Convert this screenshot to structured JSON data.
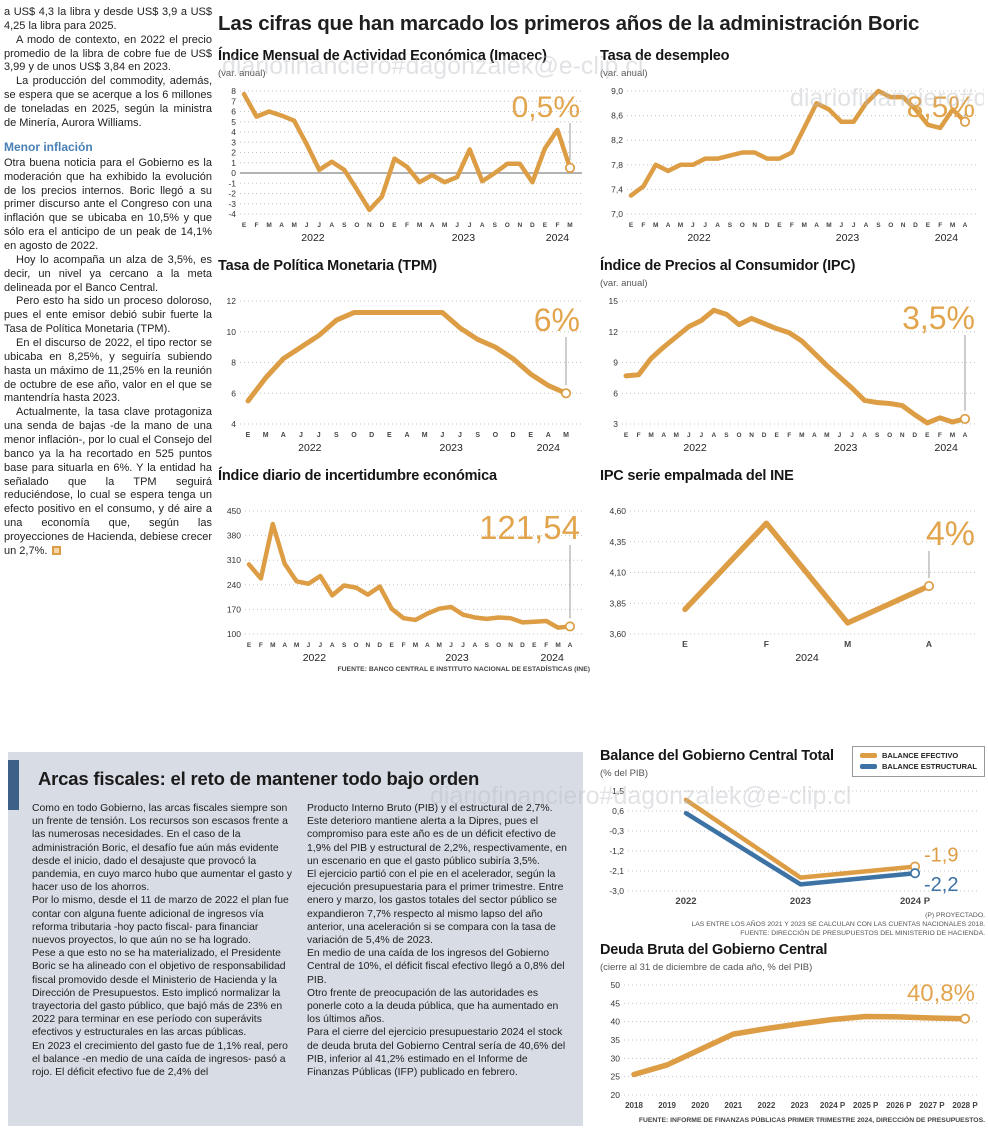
{
  "page": {
    "main_title": "Las cifras que han marcado los primeros años de la administración Boric",
    "watermark": "diariofinanciero#dagonzalek@e-clip.cl"
  },
  "left_article": {
    "paragraphs": [
      "a US$ 4,3 la libra y desde US$ 3,9 a US$ 4,25 la libra para 2025.",
      "A modo de contexto, en 2022 el precio promedio de la libra de cobre fue de US$ 3,99 y de unos US$ 3,84 en 2023.",
      "La producción del commodity, además, se espera que se acerque a los 6 millones de toneladas en 2025, según la ministra de Minería, Aurora Williams."
    ],
    "subhead": "Menor inflación",
    "paragraphs2": [
      "Otra buena noticia para el Gobierno es la moderación que ha exhibido la evolución de los precios internos. Boric llegó a su primer discurso ante el Congreso con una inflación que se ubicaba en 10,5% y que sólo era el anticipo de un peak de 14,1% en agosto de 2022.",
      "Hoy lo acompaña un alza de 3,5%, es decir, un nivel ya cercano a la meta delineada por el Banco Central.",
      "Pero esto ha sido un proceso doloroso, pues el ente emisor debió subir fuerte la Tasa de Política Monetaria (TPM).",
      "En el discurso de 2022, el tipo rector se ubicaba en 8,25%, y seguiría subiendo hasta un máximo de 11,25% en la reunión de octubre de ese año, valor en el que se mantendría hasta 2023.",
      "Actualmente, la tasa clave protagoniza una senda de bajas -de la mano de una menor inflación-, por lo cual el Consejo del banco ya la ha recortado en 525 puntos base para situarla en 6%. Y la entidad ha señalado que la TPM seguirá reduciéndose, lo cual se espera tenga un efecto positivo en el consumo, y dé aire a una economía que, según las proyecciones de Hacienda, debiese crecer un 2,7%."
    ]
  },
  "fiscal_box": {
    "title": "Arcas fiscales: el reto de mantener todo bajo orden",
    "col1": [
      "Como en todo Gobierno, las arcas fiscales siempre son un frente de tensión. Los recursos son escasos frente a las numerosas necesidades. En el caso de la administración Boric, el desafío fue aún más evidente desde el inicio, dado el desajuste que provocó la pandemia, en cuyo marco hubo que aumentar el gasto y hacer uso de los ahorros.",
      "Por lo mismo, desde el 11 de marzo de 2022 el plan fue contar con alguna fuente adicional de ingresos vía reforma tributaria -hoy pacto fiscal- para financiar nuevos proyectos, lo que aún no se ha logrado.",
      "Pese a que esto no se ha materializado, el Presidente Boric se ha alineado con el objetivo de responsabilidad fiscal promovido desde el Ministerio de Hacienda y la Dirección de Presupuestos. Esto implicó normalizar la trayectoria del gasto público, que bajó más de 23% en 2022 para terminar en ese período con superávits efectivos y estructurales en las arcas públicas.",
      "En 2023 el crecimiento del gasto fue de 1,1% real, pero el balance -en medio de una caída de ingresos- pasó a rojo. El déficit efectivo fue de 2,4% del"
    ],
    "col2": [
      "Producto Interno Bruto (PIB) y el estructural de 2,7%. Este deterioro mantiene alerta a la Dipres, pues el compromiso para este año es de un déficit efectivo de 1,9% del PIB y estructural de 2,2%, respectivamente, en un escenario en que el gasto público subiría 3,5%.",
      "El ejercicio partió con el pie en el acelerador, según la ejecución presupuestaria para el primer trimestre. Entre enero y marzo, los gastos totales del sector público se expandieron 7,7% respecto al mismo lapso del año anterior, una aceleración si se compara con la tasa de variación de 5,4% de 2023.",
      "En medio de una caída de los ingresos del Gobierno Central de 10%, el déficit fiscal efectivo llegó a 0,8% del PIB.",
      "Otro frente de preocupación de las autoridades es ponerle coto a la deuda pública, que ha aumentado en los últimos años.",
      "Para el cierre del ejercicio presupuestario 2024 el stock de deuda bruta del Gobierno Central sería de 40,6% del PIB, inferior al 41,2% estimado en el Informe de Finanzas Públicas (IFP) publicado en febrero."
    ]
  },
  "colors": {
    "line_orange": "#dd9d45",
    "big_label_orange": "#e2a54e",
    "line_blue": "#3d72a4",
    "subhead_blue": "#4a80b5",
    "box_bg": "#d8dde5",
    "accent_bar": "#3c6087"
  },
  "chart_data": {
    "imacec": {
      "type": "line",
      "title": "Índice Mensual de Actividad Económica (Imacec)",
      "subtitle": "(var. anual)",
      "big_value": "0,5%",
      "color": "#dd9d45",
      "ylim": [
        -4,
        8
      ],
      "zero_line": true,
      "ticks": [
        {
          "v": 8,
          "label": "8"
        },
        {
          "v": 7,
          "label": "7"
        },
        {
          "v": 6,
          "label": "6"
        },
        {
          "v": 5,
          "label": "5"
        },
        {
          "v": 4,
          "label": "4"
        },
        {
          "v": 3,
          "label": "3"
        },
        {
          "v": 2,
          "label": "2"
        },
        {
          "v": 1,
          "label": "1"
        },
        {
          "v": 0,
          "label": "0"
        },
        {
          "v": -1,
          "label": "-1"
        },
        {
          "v": -2,
          "label": "-2"
        },
        {
          "v": -3,
          "label": "-3"
        },
        {
          "v": -4,
          "label": "-4"
        }
      ],
      "x_labels": [
        "E",
        "F",
        "M",
        "A",
        "M",
        "J",
        "J",
        "A",
        "S",
        "O",
        "N",
        "D",
        "E",
        "F",
        "M",
        "A",
        "M",
        "J",
        "J",
        "A",
        "S",
        "O",
        "N",
        "D",
        "E",
        "F",
        "M"
      ],
      "years": [
        {
          "label": "2022",
          "from": 0,
          "to": 11
        },
        {
          "label": "2023",
          "from": 12,
          "to": 23
        },
        {
          "label": "2024",
          "from": 24,
          "to": 26
        }
      ],
      "values": [
        7.7,
        5.5,
        6.0,
        5.6,
        5.1,
        2.8,
        0.3,
        1.1,
        0.3,
        -1.6,
        -3.6,
        -2.3,
        1.4,
        0.6,
        -0.9,
        -0.2,
        -0.9,
        -0.4,
        2.3,
        -0.8,
        0.0,
        0.9,
        0.9,
        -0.9,
        2.4,
        4.2,
        0.5
      ]
    },
    "desempleo": {
      "type": "line",
      "title": "Tasa de desempleo",
      "subtitle": "(var. anual)",
      "big_value": "8,5%",
      "color": "#dd9d45",
      "ylim": [
        7.0,
        9.0
      ],
      "ticks": [
        {
          "v": 9.0,
          "label": "9,0"
        },
        {
          "v": 8.6,
          "label": "8,6"
        },
        {
          "v": 8.2,
          "label": "8,2"
        },
        {
          "v": 7.8,
          "label": "7,8"
        },
        {
          "v": 7.4,
          "label": "7,4"
        },
        {
          "v": 7.0,
          "label": "7,0"
        }
      ],
      "x_labels": [
        "E",
        "F",
        "M",
        "A",
        "M",
        "J",
        "J",
        "A",
        "S",
        "O",
        "N",
        "D",
        "E",
        "F",
        "M",
        "A",
        "M",
        "J",
        "J",
        "A",
        "S",
        "O",
        "N",
        "D",
        "E",
        "F",
        "M",
        "A"
      ],
      "years": [
        {
          "label": "2022",
          "from": 0,
          "to": 11
        },
        {
          "label": "2023",
          "from": 12,
          "to": 23
        },
        {
          "label": "2024",
          "from": 24,
          "to": 27
        }
      ],
      "values": [
        7.3,
        7.45,
        7.8,
        7.7,
        7.8,
        7.8,
        7.9,
        7.9,
        7.95,
        8.0,
        8.0,
        7.9,
        7.9,
        8.0,
        8.4,
        8.8,
        8.7,
        8.5,
        8.5,
        8.8,
        9.0,
        8.9,
        8.9,
        8.7,
        8.45,
        8.4,
        8.7,
        8.5
      ]
    },
    "tpm": {
      "type": "line",
      "title": "Tasa de Política Monetaria (TPM)",
      "big_value": "6%",
      "color": "#dd9d45",
      "ylim": [
        4,
        12
      ],
      "ticks": [
        {
          "v": 12,
          "label": "12"
        },
        {
          "v": 10,
          "label": "10"
        },
        {
          "v": 8,
          "label": "8"
        },
        {
          "v": 6,
          "label": "6"
        },
        {
          "v": 4,
          "label": "4"
        }
      ],
      "x_labels": [
        "E",
        "M",
        "A",
        "J",
        "J",
        "S",
        "O",
        "D",
        "E",
        "A",
        "M",
        "J",
        "J",
        "S",
        "O",
        "D",
        "E",
        "A",
        "M"
      ],
      "years": [
        {
          "label": "2022",
          "from": 0,
          "to": 7
        },
        {
          "label": "2023",
          "from": 8,
          "to": 15
        },
        {
          "label": "2024",
          "from": 16,
          "to": 18
        }
      ],
      "values": [
        5.5,
        7.0,
        8.25,
        9.0,
        9.75,
        10.75,
        11.25,
        11.25,
        11.25,
        11.25,
        11.25,
        11.25,
        10.25,
        9.5,
        9.0,
        8.25,
        7.25,
        6.5,
        6.0
      ]
    },
    "ipc": {
      "type": "line",
      "title": "Índice de Precios al Consumidor (IPC)",
      "subtitle": "(var. anual)",
      "big_value": "3,5%",
      "color": "#dd9d45",
      "ylim": [
        3,
        15
      ],
      "ticks": [
        {
          "v": 15,
          "label": "15"
        },
        {
          "v": 12,
          "label": "12"
        },
        {
          "v": 9,
          "label": "9"
        },
        {
          "v": 6,
          "label": "6"
        },
        {
          "v": 3,
          "label": "3"
        }
      ],
      "x_labels": [
        "E",
        "F",
        "M",
        "A",
        "M",
        "J",
        "J",
        "A",
        "S",
        "O",
        "N",
        "D",
        "E",
        "F",
        "M",
        "A",
        "M",
        "J",
        "J",
        "A",
        "S",
        "O",
        "N",
        "D",
        "E",
        "F",
        "M",
        "A"
      ],
      "years": [
        {
          "label": "2022",
          "from": 0,
          "to": 11
        },
        {
          "label": "2023",
          "from": 12,
          "to": 23
        },
        {
          "label": "2024",
          "from": 24,
          "to": 27
        }
      ],
      "values": [
        7.7,
        7.8,
        9.4,
        10.5,
        11.5,
        12.5,
        13.1,
        14.1,
        13.7,
        12.7,
        13.3,
        12.8,
        12.3,
        11.9,
        11.1,
        9.9,
        8.7,
        7.6,
        6.5,
        5.3,
        5.1,
        5.0,
        4.8,
        3.9,
        3.1,
        3.6,
        3.2,
        3.5
      ]
    },
    "incertidumbre": {
      "type": "line",
      "title": "Índice diario de incertidumbre económica",
      "big_value": "121,54",
      "color": "#dd9d45",
      "ylim": [
        100,
        450
      ],
      "ticks": [
        {
          "v": 450,
          "label": "450"
        },
        {
          "v": 380,
          "label": "380"
        },
        {
          "v": 310,
          "label": "310"
        },
        {
          "v": 240,
          "label": "240"
        },
        {
          "v": 170,
          "label": "170"
        },
        {
          "v": 100,
          "label": "100"
        }
      ],
      "x_labels": [
        "E",
        "F",
        "M",
        "A",
        "M",
        "J",
        "J",
        "A",
        "S",
        "O",
        "N",
        "D",
        "E",
        "F",
        "M",
        "A",
        "M",
        "J",
        "J",
        "A",
        "S",
        "O",
        "N",
        "D",
        "E",
        "F",
        "M",
        "A"
      ],
      "years": [
        {
          "label": "2022",
          "from": 0,
          "to": 11
        },
        {
          "label": "2023",
          "from": 12,
          "to": 23
        },
        {
          "label": "2024",
          "from": 24,
          "to": 27
        }
      ],
      "values": [
        298,
        258,
        413,
        300,
        250,
        243,
        265,
        210,
        238,
        232,
        212,
        235,
        172,
        145,
        140,
        158,
        172,
        177,
        155,
        147,
        143,
        147,
        145,
        133,
        135,
        137,
        118,
        121.54
      ],
      "source": "FUENTE: BANCO CENTRAL E INSTITUTO NACIONAL DE ESTADÍSTICAS (INE)"
    },
    "ipc_ine": {
      "type": "line",
      "title": "IPC serie empalmada del INE",
      "big_value": "4%",
      "color": "#dd9d45",
      "ylim": [
        3.6,
        4.6
      ],
      "ticks": [
        {
          "v": 4.6,
          "label": "4,60"
        },
        {
          "v": 4.35,
          "label": "4,35"
        },
        {
          "v": 4.1,
          "label": "4,10"
        },
        {
          "v": 3.85,
          "label": "3,85"
        },
        {
          "v": 3.6,
          "label": "3,60"
        }
      ],
      "x_labels": [
        "E",
        "F",
        "M",
        "A"
      ],
      "years": [
        {
          "label": "2024",
          "from": 0,
          "to": 3
        }
      ],
      "values": [
        3.8,
        4.5,
        3.69,
        3.99
      ]
    },
    "balance": {
      "type": "line",
      "title": "Balance del Gobierno Central Total",
      "subtitle": "(% del PIB)",
      "ylim": [
        -3.0,
        1.5
      ],
      "ticks": [
        {
          "v": 1.5,
          "label": "1,5"
        },
        {
          "v": 0.6,
          "label": "0,6"
        },
        {
          "v": -0.3,
          "label": "-0,3"
        },
        {
          "v": -1.2,
          "label": "-1,2"
        },
        {
          "v": -2.1,
          "label": "-2,1"
        },
        {
          "v": -3.0,
          "label": "-3,0"
        }
      ],
      "x_labels": [
        "2022",
        "2023",
        "2024 P"
      ],
      "series": [
        {
          "name": "BALANCE EFECTIVO",
          "color": "#dd9d45",
          "values": [
            1.1,
            -2.4,
            -1.9
          ],
          "end_label": "-1,9"
        },
        {
          "name": "BALANCE ESTRUCTURAL",
          "color": "#3d72a4",
          "values": [
            0.5,
            -2.7,
            -2.2
          ],
          "end_label": "-2,2"
        }
      ],
      "notes": [
        "(P) PROYECTADO.",
        "LAS ENTRE LOS AÑOS 2021 Y 2023 SE CALCULAN  CON LAS CUENTAS NACIONALES 2018.",
        "FUENTE: DIRECCIÓN DE PRESUPUESTOS DEL MINISTERIO DE HACIENDA."
      ]
    },
    "deuda": {
      "type": "line",
      "title": "Deuda Bruta del Gobierno Central",
      "subtitle": "(cierre al 31 de diciembre de cada año, % del PIB)",
      "big_value": "40,8%",
      "color": "#dd9d45",
      "ylim": [
        20,
        50
      ],
      "ticks": [
        {
          "v": 50,
          "label": "50"
        },
        {
          "v": 45,
          "label": "45"
        },
        {
          "v": 40,
          "label": "40"
        },
        {
          "v": 35,
          "label": "35"
        },
        {
          "v": 30,
          "label": "30"
        },
        {
          "v": 25,
          "label": "25"
        },
        {
          "v": 20,
          "label": "20"
        }
      ],
      "x_labels": [
        "2018",
        "2019",
        "2020",
        "2021",
        "2022",
        "2023",
        "2024 P",
        "2025 P",
        "2026 P",
        "2027 P",
        "2028 P"
      ],
      "values": [
        25.6,
        28.2,
        32.4,
        36.6,
        38.1,
        39.4,
        40.6,
        41.4,
        41.3,
        41.0,
        40.8
      ],
      "source": "FUENTE: INFORME DE FINANZAS PÚBLICAS PRIMER TRIMESTRE 2024, DIRECCIÓN DE PRESUPUESTOS."
    }
  }
}
